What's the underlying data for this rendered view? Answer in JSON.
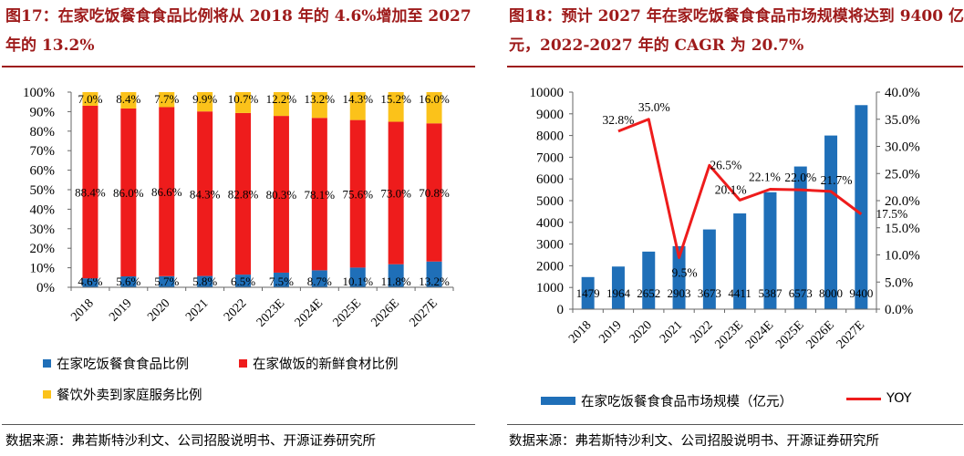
{
  "left": {
    "title": "图17：在家吃饭餐食食品比例将从 2018 年的 4.6%增加至 2027 年的 13.2%",
    "source": "数据来源：弗若斯特沙利文、公司招股说明书、开源证券研究所",
    "legend": [
      "在家吃饭餐食食品比例",
      "在家做饭的新鲜食材比例",
      "餐饮外卖到家庭服务比例"
    ]
  },
  "right": {
    "title": "图18：预计 2027 年在家吃饭餐食食品市场规模将达到 9400 亿元，2022-2027 年的 CAGR 为 20.7%",
    "source": "数据来源：弗若斯特沙利文、公司招股说明书、开源证券研究所",
    "legend": [
      "在家吃饭餐食食品市场规模（亿元）",
      "YOY"
    ]
  },
  "chart_data": [
    {
      "type": "bar",
      "stacked": true,
      "categories": [
        "2018",
        "2019",
        "2020",
        "2021",
        "2022",
        "2023E",
        "2024E",
        "2025E",
        "2026E",
        "2027E"
      ],
      "series": [
        {
          "name": "在家吃饭餐食食品比例",
          "color": "#1f6fb8",
          "values": [
            4.6,
            5.6,
            5.7,
            5.8,
            6.5,
            7.5,
            8.7,
            10.1,
            11.8,
            13.2
          ],
          "labels": [
            "4.6%",
            "5.6%",
            "5.7%",
            "5.8%",
            "6.5%",
            "7.5%",
            "8.7%",
            "10.1%",
            "11.8%",
            "13.2%"
          ]
        },
        {
          "name": "在家做饭的新鲜食材比例",
          "color": "#ee1c1c",
          "values": [
            88.4,
            86.0,
            86.6,
            84.3,
            82.8,
            80.3,
            78.1,
            75.6,
            73.0,
            70.8
          ],
          "labels": [
            "88.4%",
            "86.0%",
            "86.6%",
            "84.3%",
            "82.8%",
            "80.3%",
            "78.1%",
            "75.6%",
            "73.0%",
            "70.8%"
          ]
        },
        {
          "name": "餐饮外卖到家庭服务比例",
          "color": "#fbc21a",
          "values": [
            7.0,
            8.4,
            7.7,
            9.9,
            10.7,
            12.2,
            13.2,
            14.3,
            15.2,
            16.0
          ],
          "labels": [
            "7.0%",
            "8.4%",
            "7.7%",
            "9.9%",
            "10.7%",
            "12.2%",
            "13.2%",
            "14.3%",
            "15.2%",
            "16.0%"
          ]
        }
      ],
      "ylim": [
        0,
        100
      ],
      "yticks": [
        "0%",
        "10%",
        "20%",
        "30%",
        "40%",
        "50%",
        "60%",
        "70%",
        "80%",
        "90%",
        "100%"
      ],
      "legend_position": "bottom",
      "grid": false
    },
    {
      "type": "bar",
      "categories": [
        "2018",
        "2019",
        "2020",
        "2021",
        "2022",
        "2023E",
        "2024E",
        "2025E",
        "2026E",
        "2027E"
      ],
      "series": [
        {
          "name": "在家吃饭餐食食品市场规模（亿元）",
          "color": "#1f6fb8",
          "axis": "left",
          "values": [
            1479,
            1964,
            2652,
            2903,
            3673,
            4411,
            5387,
            6573,
            8000,
            9400
          ],
          "labels": [
            "1479",
            "1964",
            "2652",
            "2903",
            "3673",
            "4411",
            "5387",
            "6573",
            "8000",
            "9400"
          ]
        },
        {
          "name": "YOY",
          "type": "line",
          "color": "#ee1c1c",
          "axis": "right",
          "values": [
            null,
            32.8,
            35.0,
            9.5,
            26.5,
            20.1,
            22.1,
            22.0,
            21.7,
            17.5
          ],
          "labels": [
            "",
            "32.8%",
            "35.0%",
            "9.5%",
            "26.5%",
            "20.1%",
            "22.1%",
            "22.0%",
            "21.7%",
            "17.5%"
          ]
        }
      ],
      "ylim": [
        0,
        10000
      ],
      "yticks": [
        "0",
        "1000",
        "2000",
        "3000",
        "4000",
        "5000",
        "6000",
        "7000",
        "8000",
        "9000",
        "10000"
      ],
      "y2lim": [
        0,
        40
      ],
      "y2ticks": [
        "0.0%",
        "5.0%",
        "10.0%",
        "15.0%",
        "20.0%",
        "25.0%",
        "30.0%",
        "35.0%",
        "40.0%"
      ],
      "legend_position": "bottom",
      "grid": false
    }
  ]
}
